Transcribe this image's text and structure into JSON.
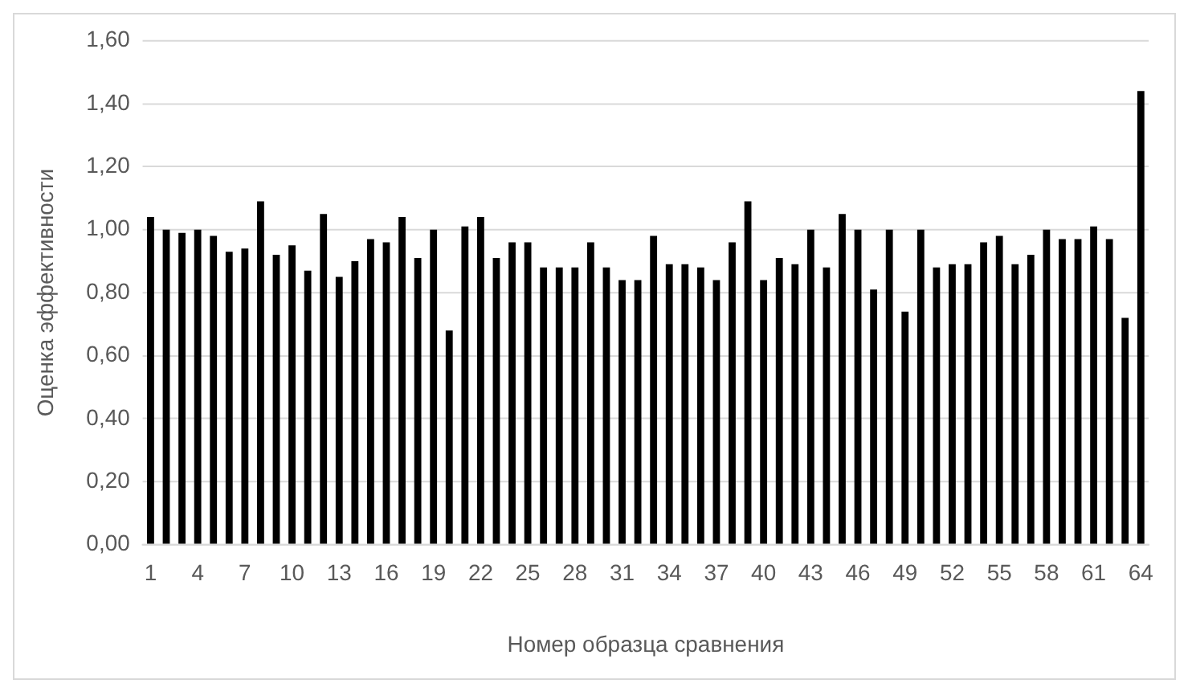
{
  "chart_data": {
    "type": "bar",
    "xlabel": "Номер образца сравнения",
    "ylabel": "Оценка эффективности",
    "categories": [
      "1",
      null,
      null,
      "4",
      null,
      null,
      "7",
      null,
      null,
      "10",
      null,
      null,
      "13",
      null,
      null,
      "16",
      null,
      null,
      "19",
      null,
      null,
      "22",
      null,
      null,
      "25",
      null,
      null,
      "28",
      null,
      null,
      "31",
      null,
      null,
      "34",
      null,
      null,
      "37",
      null,
      null,
      "40",
      null,
      null,
      "43",
      null,
      null,
      "46",
      null,
      null,
      "49",
      null,
      null,
      "52",
      null,
      null,
      "55",
      null,
      null,
      "58",
      null,
      null,
      "61",
      null,
      null,
      "64"
    ],
    "values": [
      1.04,
      1.0,
      0.99,
      1.0,
      0.98,
      0.93,
      0.94,
      1.09,
      0.92,
      0.95,
      0.87,
      1.05,
      0.85,
      0.9,
      0.97,
      0.96,
      1.04,
      0.91,
      1.0,
      0.68,
      1.01,
      1.04,
      0.91,
      0.96,
      0.96,
      0.88,
      0.88,
      0.88,
      0.96,
      0.88,
      0.84,
      0.84,
      0.98,
      0.89,
      0.89,
      0.88,
      0.84,
      0.96,
      1.09,
      0.84,
      0.91,
      0.89,
      1.0,
      0.88,
      1.05,
      1.0,
      0.81,
      1.0,
      0.74,
      1.0,
      0.88,
      0.89,
      0.89,
      0.96,
      0.98,
      0.89,
      0.92,
      1.0,
      0.97,
      0.97,
      1.01,
      0.97,
      0.72,
      1.44
    ],
    "color": "#000000",
    "ylim": [
      0,
      1.6
    ],
    "yticks": [
      {
        "value": 0,
        "label": "0,00"
      },
      {
        "value": 0.2,
        "label": "0,20"
      },
      {
        "value": 0.4,
        "label": "0,40"
      },
      {
        "value": 0.6,
        "label": "0,60"
      },
      {
        "value": 0.8,
        "label": "0,80"
      },
      {
        "value": 1.0,
        "label": "1,00"
      },
      {
        "value": 1.2,
        "label": "1,20"
      },
      {
        "value": 1.4,
        "label": "1,40"
      },
      {
        "value": 1.6,
        "label": "1,60"
      }
    ],
    "grid": "y",
    "legend": false
  }
}
